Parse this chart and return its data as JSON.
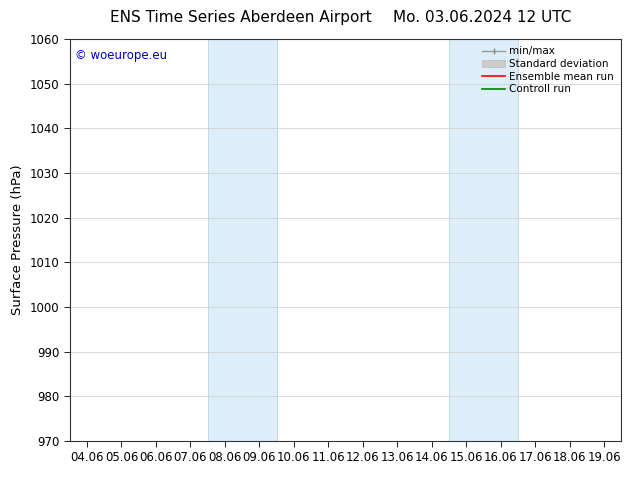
{
  "title_left": "ENS Time Series Aberdeen Airport",
  "title_right": "Mo. 03.06.2024 12 UTC",
  "ylabel": "Surface Pressure (hPa)",
  "ylim": [
    970,
    1060
  ],
  "yticks": [
    970,
    980,
    990,
    1000,
    1010,
    1020,
    1030,
    1040,
    1050,
    1060
  ],
  "xlabels": [
    "04.06",
    "05.06",
    "06.06",
    "07.06",
    "08.06",
    "09.06",
    "10.06",
    "11.06",
    "12.06",
    "13.06",
    "14.06",
    "15.06",
    "16.06",
    "17.06",
    "18.06",
    "19.06"
  ],
  "xvalues": [
    0,
    1,
    2,
    3,
    4,
    5,
    6,
    7,
    8,
    9,
    10,
    11,
    12,
    13,
    14,
    15
  ],
  "shade_regions": [
    {
      "xmin": 3.5,
      "xmax": 5.5
    },
    {
      "xmin": 10.5,
      "xmax": 12.5
    }
  ],
  "shade_color": "#ddeef8",
  "shade_edge_color": "#b8d4e8",
  "watermark_text": "© woeurope.eu",
  "watermark_color": "#0000cc",
  "bg_color": "#ffffff",
  "grid_color": "#cccccc",
  "tick_label_fontsize": 8.5,
  "axis_label_fontsize": 9.5,
  "title_fontsize": 11
}
